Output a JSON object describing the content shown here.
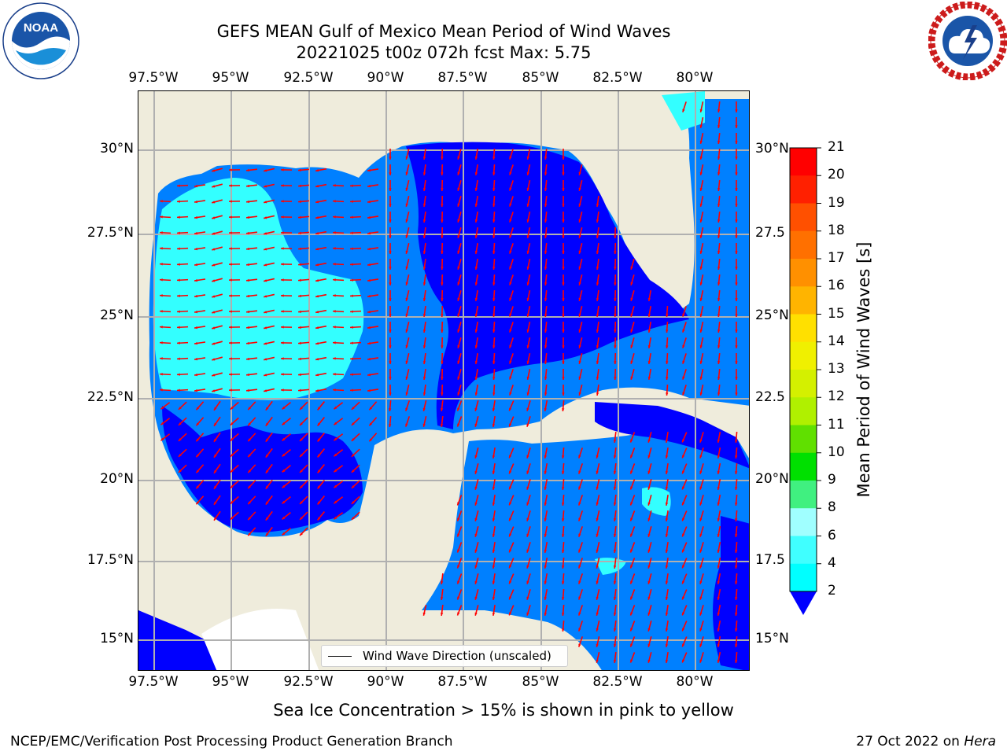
{
  "title_line1": "GEFS MEAN Gulf of Mexico Mean Period of Wind Waves",
  "title_line2": "20221025 t00z 072h fcst   Max: 5.75",
  "logos": {
    "left": {
      "name": "noaa-logo",
      "text": "NOAA",
      "ring_text": "NATIONAL OCEANIC AND ATMOSPHERIC ADMINISTRATION · U.S. DEPARTMENT OF COMMERCE"
    },
    "right": {
      "name": "nws-logo",
      "ring_text": "NATIONAL WEATHER SERVICE"
    }
  },
  "x_ticks": [
    "97.5°W",
    "95°W",
    "92.5°W",
    "90°W",
    "87.5°W",
    "85°W",
    "82.5°W",
    "80°W"
  ],
  "y_ticks": [
    "30°N",
    "27.5°N",
    "25°N",
    "22.5°N",
    "20°N",
    "17.5°N",
    "15°N"
  ],
  "y_ticks_right": [
    "30°N",
    "27.5",
    "25°N",
    "22.5",
    "20°N",
    "17.5",
    "15°N"
  ],
  "legend_label": "Wind Wave Direction (unscaled)",
  "colorbar": {
    "label": "Mean Period of Wind Waves [s]",
    "ticks": [
      "21",
      "20",
      "19",
      "18",
      "17",
      "16",
      "15",
      "14",
      "13",
      "12",
      "11",
      "10",
      "9",
      "8",
      "6",
      "4",
      "2"
    ],
    "colors": [
      "#ff0000",
      "#ff2000",
      "#ff5000",
      "#ff7000",
      "#ff9000",
      "#ffb400",
      "#ffe000",
      "#f0f000",
      "#d4f000",
      "#b0f000",
      "#60e000",
      "#00e000",
      "#40f080",
      "#a0ffff",
      "#40ffff",
      "#00ffff",
      "#0080ff"
    ],
    "extend_color": "#0000ff"
  },
  "map_colors": {
    "land": "#efecdc",
    "ocean_2_4": "#0080ff",
    "ocean_lt2": "#0000ff",
    "ocean_4_6": "#33ffff",
    "arrow": "#ff0000",
    "grid": "#b0b0b0"
  },
  "footer_ice": "Sea Ice Concentration > 15% is shown in pink to yellow",
  "footer_left": "NCEP/EMC/Verification Post Processing Product Generation Branch",
  "footer_date": "27 Oct 2022 on ",
  "footer_host": "Hera"
}
